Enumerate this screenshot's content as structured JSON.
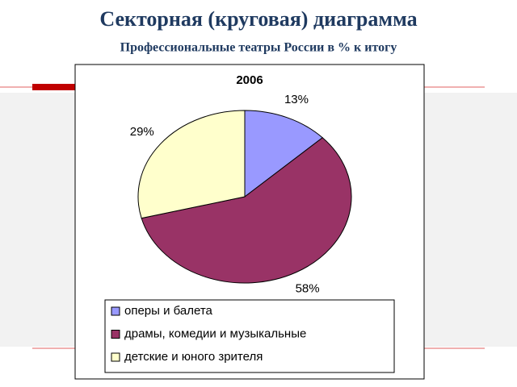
{
  "slide": {
    "title": "Секторная (круговая) диаграмма",
    "subtitle": "Профессиональные театры России в % к итогу"
  },
  "chart_data": {
    "type": "pie",
    "title": "2006",
    "categories": [
      "оперы и балета",
      "драмы, комедии и музыкальные",
      "детские и юного зрителя"
    ],
    "values": [
      13,
      58,
      29
    ],
    "value_labels": [
      "13%",
      "58%",
      "29%"
    ],
    "colors": [
      "#9999ff",
      "#993366",
      "#ffffcc"
    ]
  }
}
